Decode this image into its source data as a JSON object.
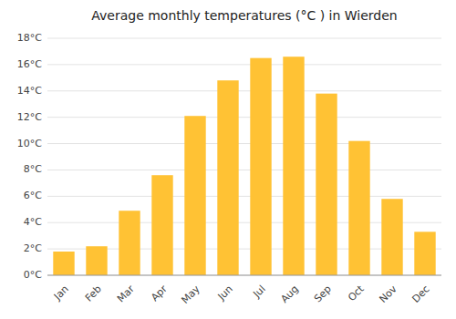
{
  "chart_data": {
    "type": "bar",
    "title": "Average monthly temperatures (°C ) in Wierden",
    "categories": [
      "Jan",
      "Feb",
      "Mar",
      "Apr",
      "May",
      "Jun",
      "Jul",
      "Aug",
      "Sep",
      "Oct",
      "Nov",
      "Dec"
    ],
    "values": [
      1.8,
      2.2,
      4.9,
      7.6,
      12.1,
      14.8,
      16.5,
      16.6,
      13.8,
      10.2,
      5.8,
      3.3
    ],
    "color": "#FFC234",
    "ylim": [
      0,
      18
    ],
    "yticks": [
      {
        "value": 0,
        "label": "0°C"
      },
      {
        "value": 2,
        "label": "2°C"
      },
      {
        "value": 4,
        "label": "4°C"
      },
      {
        "value": 6,
        "label": "6°C"
      },
      {
        "value": 8,
        "label": "8°C"
      },
      {
        "value": 10,
        "label": "10°C"
      },
      {
        "value": 12,
        "label": "12°C"
      },
      {
        "value": 14,
        "label": "14°C"
      },
      {
        "value": 16,
        "label": "16°C"
      },
      {
        "value": 18,
        "label": "18°C"
      }
    ],
    "grid": true
  }
}
